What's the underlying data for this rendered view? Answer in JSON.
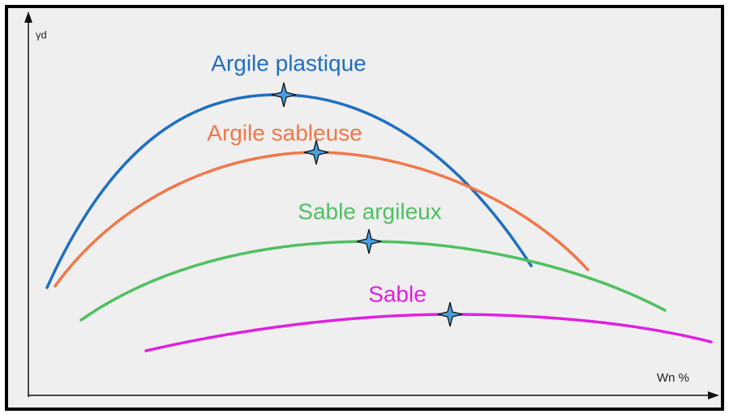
{
  "axes": {
    "y_label": "γd",
    "x_label": "Wn %"
  },
  "curves": [
    {
      "label": "Argile plastique"
    },
    {
      "label": "Argile sableuse"
    },
    {
      "label": "Sable argileux"
    },
    {
      "label": "Sable"
    }
  ]
}
